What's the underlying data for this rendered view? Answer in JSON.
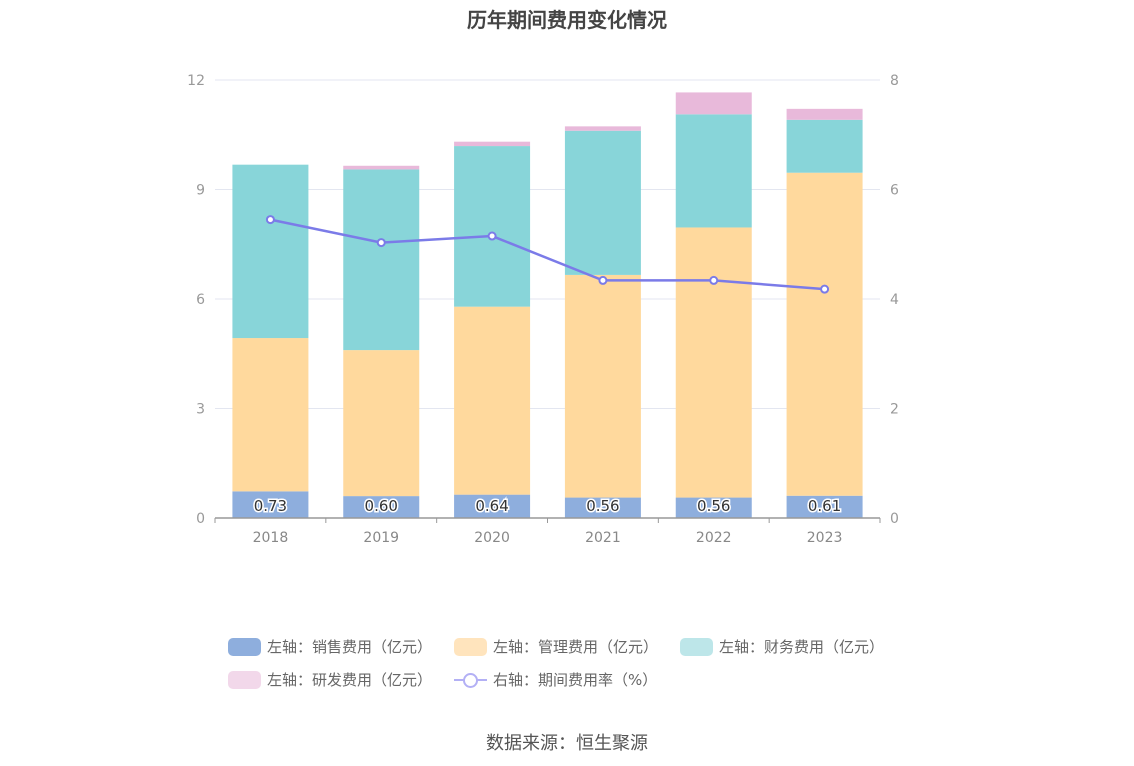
{
  "chart_data": {
    "type": "bar",
    "title": "历年期间费用变化情况",
    "categories": [
      "2018",
      "2019",
      "2020",
      "2021",
      "2022",
      "2023"
    ],
    "left_axis": {
      "ticks": [
        "0",
        "3",
        "6",
        "9",
        "12"
      ],
      "ylim": [
        0,
        12
      ]
    },
    "right_axis": {
      "ticks": [
        "0",
        "2",
        "4",
        "6",
        "8"
      ],
      "ylim": [
        0,
        8
      ]
    },
    "series": [
      {
        "name": "左轴：销售费用（亿元）",
        "axis": "left",
        "color": "#8eaedd",
        "values": [
          0.73,
          0.6,
          0.64,
          0.56,
          0.56,
          0.61
        ],
        "labels": [
          "0.73",
          "0.60",
          "0.64",
          "0.56",
          "0.56",
          "0.61"
        ]
      },
      {
        "name": "左轴：管理费用（亿元）",
        "axis": "left",
        "color": "#ffd99d",
        "values": [
          4.2,
          4.0,
          5.15,
          6.1,
          7.4,
          8.85
        ]
      },
      {
        "name": "左轴：财务费用（亿元）",
        "axis": "left",
        "color": "#88d5d9",
        "values": [
          4.75,
          4.95,
          4.4,
          3.95,
          3.1,
          1.45
        ]
      },
      {
        "name": "左轴：研发费用（亿元）",
        "axis": "left",
        "color": "#e8b9da",
        "values": [
          0.0,
          0.1,
          0.12,
          0.12,
          0.6,
          0.3
        ]
      },
      {
        "name": "右轴：期间费用率（%）",
        "axis": "right",
        "type": "line",
        "color": "#7b7be8",
        "values": [
          5.45,
          5.03,
          5.15,
          4.34,
          4.34,
          4.18
        ]
      }
    ],
    "legend": {
      "position": "bottom"
    },
    "grid": true
  },
  "source_text": "数据来源：恒生聚源"
}
